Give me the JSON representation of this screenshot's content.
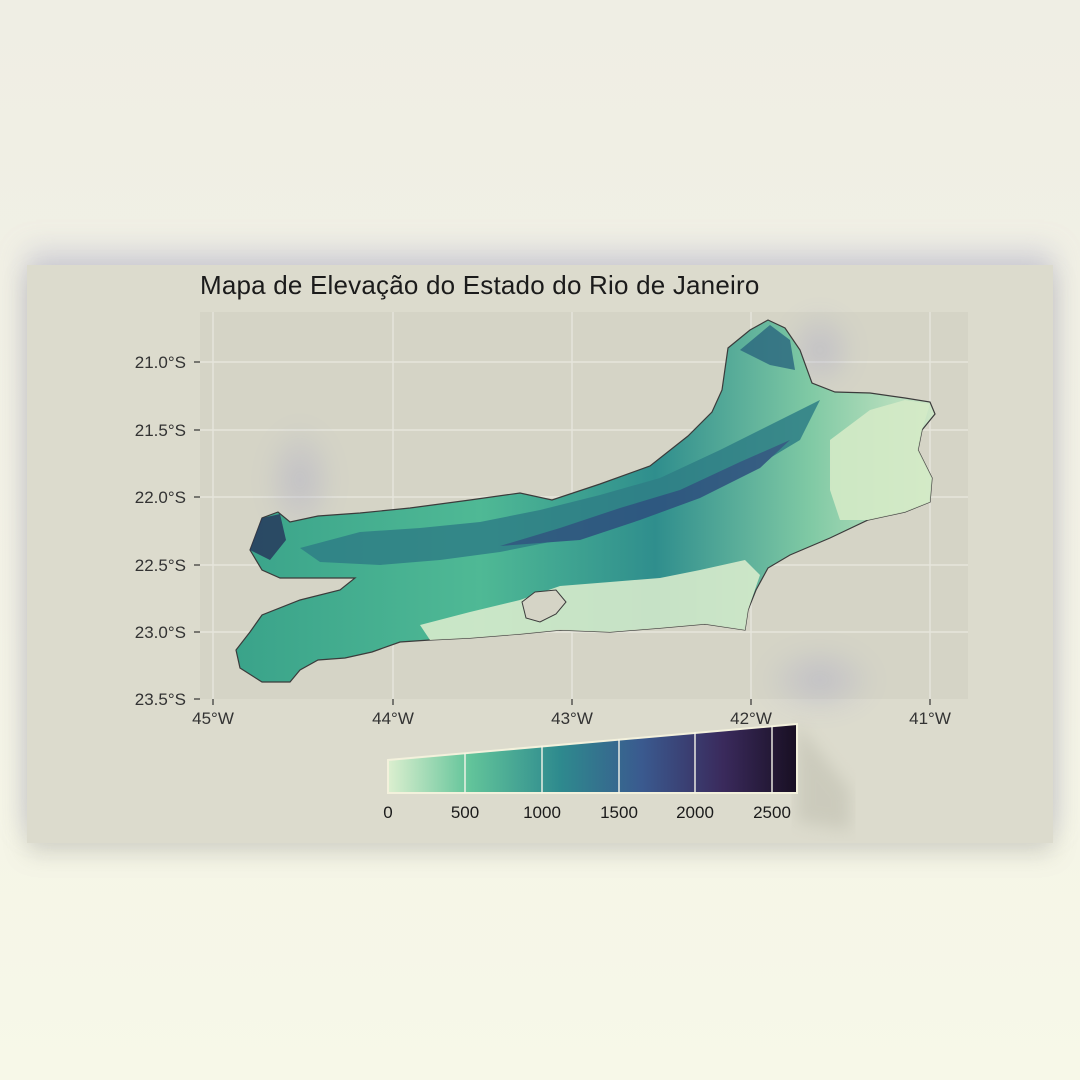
{
  "map": {
    "title": "Mapa de Elevação do Estado do Rio de Janeiro",
    "lat_ticks": [
      "21.0°S",
      "21.5°S",
      "22.0°S",
      "22.5°S",
      "23.0°S",
      "23.5°S"
    ],
    "lon_ticks": [
      "45°W",
      "44°W",
      "43°W",
      "42°W",
      "41°W"
    ],
    "panel_color": "#d5d4c6",
    "grid_color": "#e6e5dc"
  },
  "legend": {
    "labels": [
      "0",
      "500",
      "1000",
      "1500",
      "2000",
      "2500"
    ],
    "colors": [
      "#dcefcf",
      "#62c49a",
      "#2e8a8e",
      "#3a5a8f",
      "#3a2a5c",
      "#180f22"
    ]
  }
}
